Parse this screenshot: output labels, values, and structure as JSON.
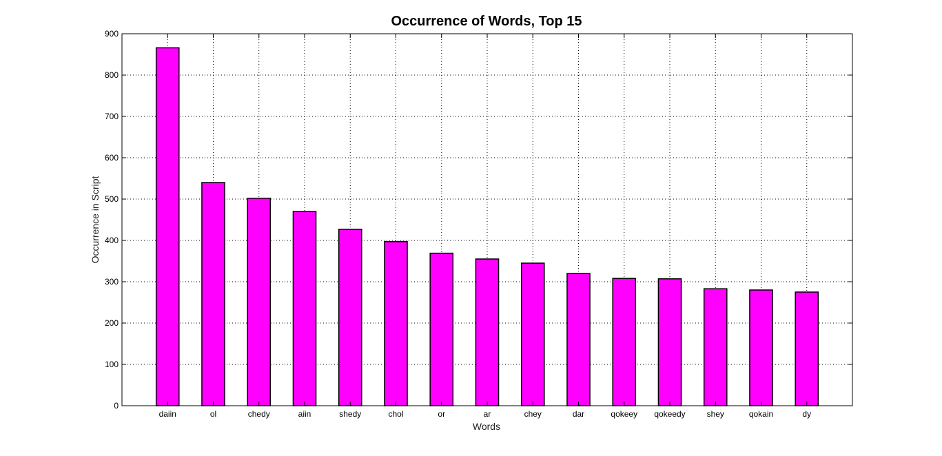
{
  "chart_data": {
    "type": "bar",
    "title": "Occurrence of Words, Top 15",
    "xlabel": "Words",
    "ylabel": "Occurrence in Script",
    "categories": [
      "daiin",
      "ol",
      "chedy",
      "aiin",
      "shedy",
      "chol",
      "or",
      "ar",
      "chey",
      "dar",
      "qokeey",
      "qokeedy",
      "shey",
      "qokain",
      "dy"
    ],
    "values": [
      866,
      540,
      502,
      470,
      427,
      397,
      369,
      355,
      345,
      320,
      308,
      307,
      283,
      280,
      275
    ],
    "ylim": [
      0,
      900
    ],
    "yticks": [
      0,
      100,
      200,
      300,
      400,
      500,
      600,
      700,
      800,
      900
    ],
    "grid": true,
    "bar_color": "#ff00ff",
    "edge_color": "#000000"
  }
}
